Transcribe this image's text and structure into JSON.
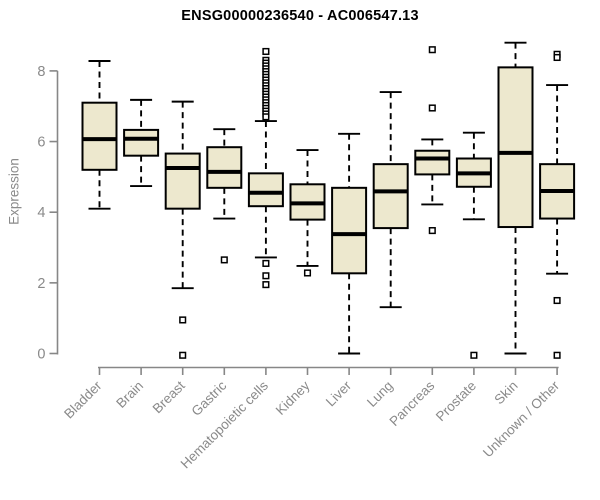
{
  "chart_data": {
    "type": "boxplot",
    "title": "ENSG00000236540 - AC006547.13",
    "ylabel": "Expression",
    "xlabel": "",
    "yticks": [
      0,
      2,
      4,
      6,
      8
    ],
    "ylim": [
      0,
      8.9
    ],
    "grid": false,
    "legend": "none",
    "categories": [
      "Bladder",
      "Brain",
      "Breast",
      "Gastric",
      "Hematopoietic cells",
      "Kidney",
      "Liver",
      "Lung",
      "Pancreas",
      "Prostate",
      "Skin",
      "Unknown / Other"
    ],
    "series": [
      {
        "category": "Bladder",
        "whisker_low": 4.1,
        "q1": 5.2,
        "median": 6.07,
        "q3": 7.1,
        "whisker_high": 8.28,
        "outliers": []
      },
      {
        "category": "Brain",
        "whisker_low": 4.74,
        "q1": 5.6,
        "median": 6.08,
        "q3": 6.33,
        "whisker_high": 7.18,
        "outliers": []
      },
      {
        "category": "Breast",
        "whisker_low": 1.85,
        "q1": 4.1,
        "median": 5.25,
        "q3": 5.66,
        "whisker_high": 7.13,
        "outliers": [
          0.95,
          -0.05
        ]
      },
      {
        "category": "Gastric",
        "whisker_low": 3.82,
        "q1": 4.69,
        "median": 5.14,
        "q3": 5.84,
        "whisker_high": 6.35,
        "outliers": [
          2.65
        ]
      },
      {
        "category": "Hematopoietic cells",
        "whisker_low": 2.72,
        "q1": 4.17,
        "median": 4.55,
        "q3": 5.1,
        "whisker_high": 6.58,
        "outliers": [
          8.55,
          8.3,
          8.22,
          8.14,
          8.06,
          7.98,
          7.9,
          7.82,
          7.74,
          7.66,
          7.58,
          7.5,
          7.42,
          7.34,
          7.26,
          7.18,
          7.1,
          7.02,
          6.94,
          6.86,
          6.78,
          6.7,
          2.55,
          2.2,
          1.95
        ]
      },
      {
        "category": "Kidney",
        "whisker_low": 2.48,
        "q1": 3.79,
        "median": 4.25,
        "q3": 4.79,
        "whisker_high": 5.76,
        "outliers": [
          2.28
        ]
      },
      {
        "category": "Liver",
        "whisker_low": 0.0,
        "q1": 2.27,
        "median": 3.38,
        "q3": 4.69,
        "whisker_high": 6.22,
        "outliers": []
      },
      {
        "category": "Lung",
        "whisker_low": 1.31,
        "q1": 3.55,
        "median": 4.59,
        "q3": 5.36,
        "whisker_high": 7.4,
        "outliers": []
      },
      {
        "category": "Pancreas",
        "whisker_low": 4.22,
        "q1": 5.07,
        "median": 5.52,
        "q3": 5.74,
        "whisker_high": 6.06,
        "outliers": [
          8.6,
          6.95,
          3.48
        ]
      },
      {
        "category": "Prostate",
        "whisker_low": 3.8,
        "q1": 4.72,
        "median": 5.1,
        "q3": 5.52,
        "whisker_high": 6.25,
        "outliers": [
          -0.05
        ]
      },
      {
        "category": "Skin",
        "whisker_low": 0.0,
        "q1": 3.58,
        "median": 5.68,
        "q3": 8.1,
        "whisker_high": 8.8,
        "outliers": []
      },
      {
        "category": "Unknown / Other",
        "whisker_low": 2.26,
        "q1": 3.82,
        "median": 4.6,
        "q3": 5.36,
        "whisker_high": 7.6,
        "outliers": [
          8.47,
          8.38,
          1.5,
          -0.05
        ]
      }
    ],
    "colors": {
      "box_fill": "#EDE8CE",
      "box_border": "#000000",
      "median": "#000000",
      "whisker": "#000000",
      "outlier_stroke": "#000000",
      "axis": "#878787",
      "tick_label": "#8a8a8a",
      "title": "#000000",
      "background": "#ffffff"
    },
    "marks": {
      "outlier_glyph": "open-square-icon",
      "whisker_style": "dashed"
    }
  }
}
